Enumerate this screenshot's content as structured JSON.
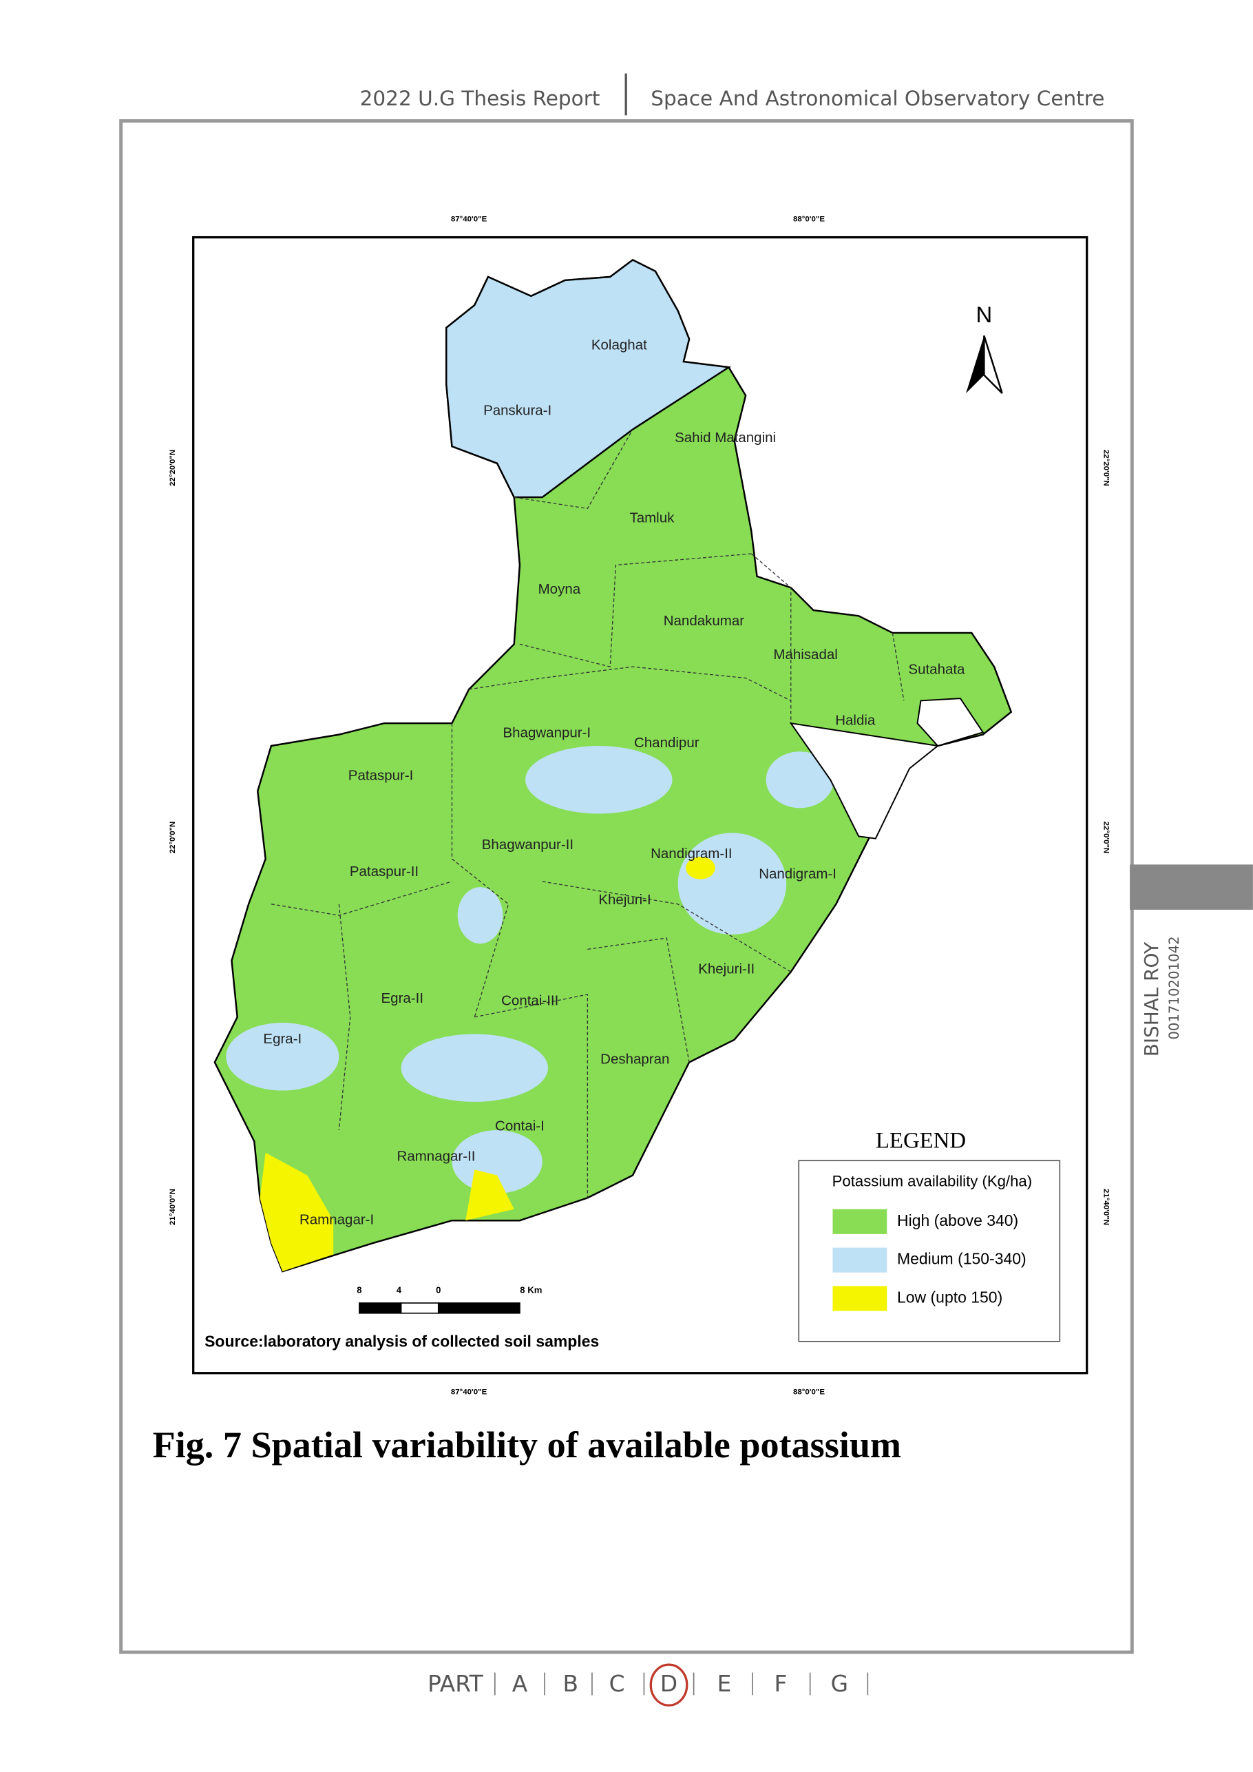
{
  "header": {
    "left": "2022 U.G Thesis Report",
    "right": "Space And Astronomical Observatory Centre"
  },
  "map": {
    "lon_labels": [
      "87°40'0\"E",
      "88°0'0\"E"
    ],
    "lat_labels": [
      "22°20'0\"N",
      "22°0'0\"N",
      "21°40'0\"N"
    ],
    "north": "N",
    "blocks": [
      "Kolaghat",
      "Panskura-I",
      "Sahid Matangini",
      "Tamluk",
      "Moyna",
      "Nandakumar",
      "Mahisadal",
      "Sutahata",
      "Haldia",
      "Bhagwanpur-I",
      "Chandipur",
      "Pataspur-I",
      "Bhagwanpur-II",
      "Nandigram-II",
      "Nandigram-I",
      "Pataspur-II",
      "Khejuri-I",
      "Khejuri-II",
      "Egra-II",
      "Contai-III",
      "Egra-I",
      "Deshapran",
      "Contai-I",
      "Ramnagar-II",
      "Ramnagar-I"
    ],
    "legend": {
      "heading": "LEGEND",
      "title": "Potassium availability (Kg/ha)",
      "items": [
        {
          "label": "High (above 340)",
          "color": "#88dd55"
        },
        {
          "label": "Medium (150-340)",
          "color": "#bfe1f5"
        },
        {
          "label": "Low (upto 150)",
          "color": "#f5f500"
        }
      ]
    },
    "scale_labels": [
      "8",
      "4",
      "0",
      "8 Km"
    ],
    "source": "Source:laboratory analysis of collected soil samples"
  },
  "caption": "Fig. 7 Spatial variability of available potassium",
  "side": {
    "name": "BISHAL ROY",
    "id": "001710201042"
  },
  "footer": {
    "part": "PART",
    "sections": [
      "A",
      "B",
      "C",
      "D",
      "E",
      "F",
      "G"
    ],
    "current": "D"
  }
}
